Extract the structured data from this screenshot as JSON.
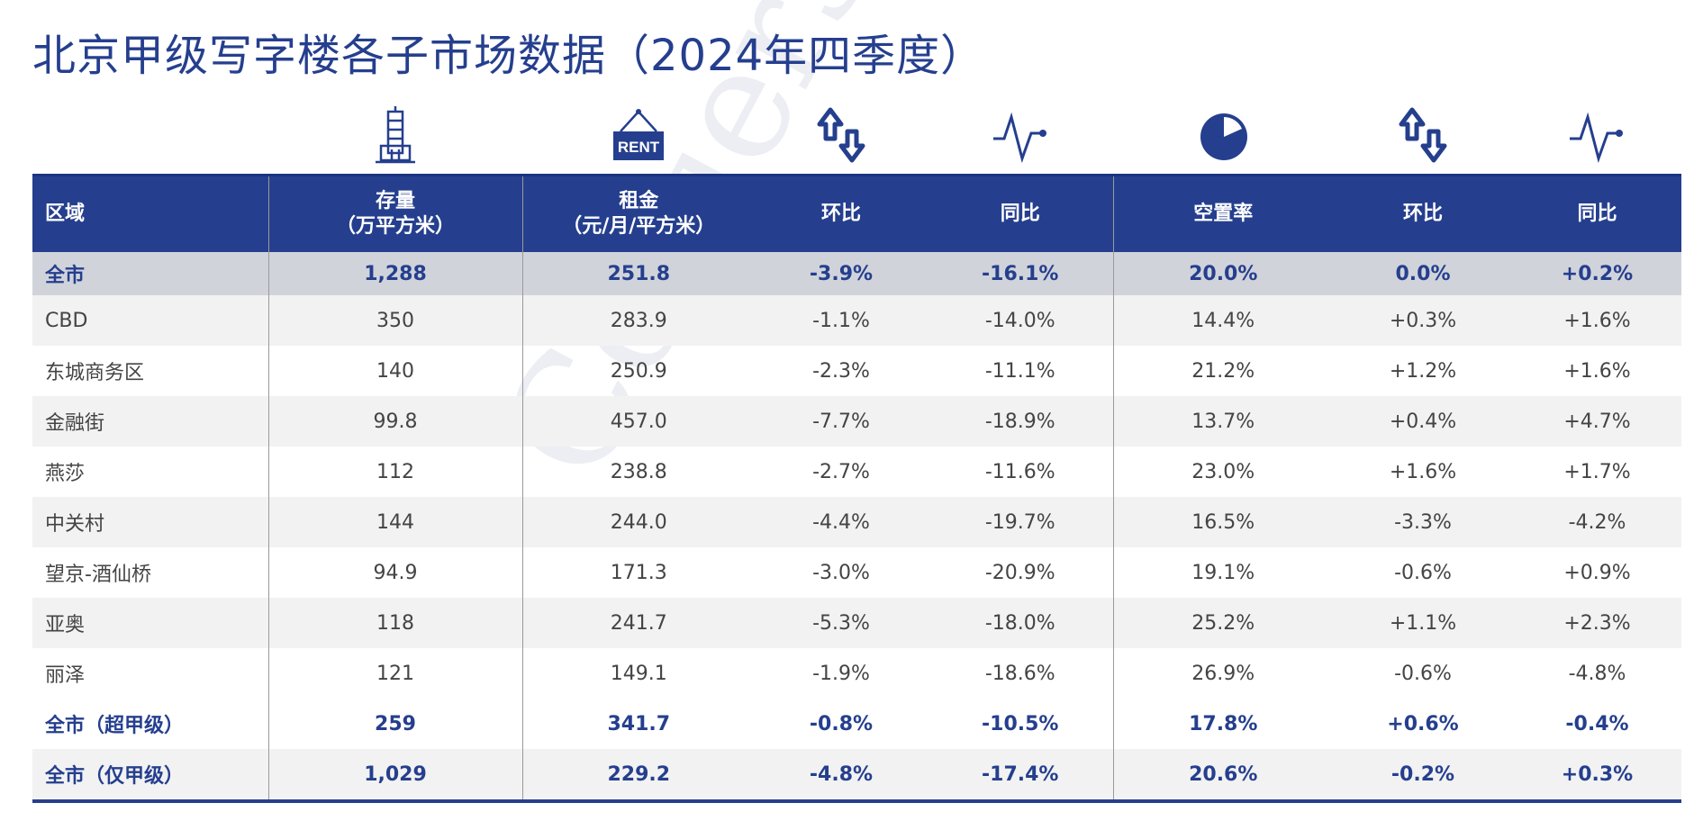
{
  "title": "北京甲级写字楼各子市场数据（2024年四季度）",
  "watermark": "Colliers",
  "colors": {
    "brand": "#253f8e",
    "total_row": "#d1d3db",
    "stripe": "#f2f2f2"
  },
  "icons": [
    "building-icon",
    "rent-sign-icon",
    "up-down-arrows-icon",
    "pulse-line-icon",
    "pie-icon",
    "up-down-arrows-icon",
    "pulse-line-icon"
  ],
  "rent_sign_text": "RENT",
  "headers": {
    "region": "区域",
    "stock": "存量",
    "stock_unit": "（万平方米）",
    "rent": "租金",
    "rent_unit": "（元/月/平方米）",
    "rent_qoq": "环比",
    "rent_yoy": "同比",
    "vacancy": "空置率",
    "vac_qoq": "环比",
    "vac_yoy": "同比"
  },
  "rows": [
    {
      "region": "全市",
      "stock": "1,288",
      "rent": "251.8",
      "rent_qoq": "-3.9%",
      "rent_yoy": "-16.1%",
      "vacancy": "20.0%",
      "vac_qoq": "0.0%",
      "vac_yoy": "+0.2%"
    },
    {
      "region": "CBD",
      "stock": "350",
      "rent": "283.9",
      "rent_qoq": "-1.1%",
      "rent_yoy": "-14.0%",
      "vacancy": "14.4%",
      "vac_qoq": "+0.3%",
      "vac_yoy": "+1.6%"
    },
    {
      "region": "东城商务区",
      "stock": "140",
      "rent": "250.9",
      "rent_qoq": "-2.3%",
      "rent_yoy": "-11.1%",
      "vacancy": "21.2%",
      "vac_qoq": "+1.2%",
      "vac_yoy": "+1.6%"
    },
    {
      "region": "金融街",
      "stock": "99.8",
      "rent": "457.0",
      "rent_qoq": "-7.7%",
      "rent_yoy": "-18.9%",
      "vacancy": "13.7%",
      "vac_qoq": "+0.4%",
      "vac_yoy": "+4.7%"
    },
    {
      "region": "燕莎",
      "stock": "112",
      "rent": "238.8",
      "rent_qoq": "-2.7%",
      "rent_yoy": "-11.6%",
      "vacancy": "23.0%",
      "vac_qoq": "+1.6%",
      "vac_yoy": "+1.7%"
    },
    {
      "region": "中关村",
      "stock": "144",
      "rent": "244.0",
      "rent_qoq": "-4.4%",
      "rent_yoy": "-19.7%",
      "vacancy": "16.5%",
      "vac_qoq": "-3.3%",
      "vac_yoy": "-4.2%"
    },
    {
      "region": "望京-酒仙桥",
      "stock": "94.9",
      "rent": "171.3",
      "rent_qoq": "-3.0%",
      "rent_yoy": "-20.9%",
      "vacancy": "19.1%",
      "vac_qoq": "-0.6%",
      "vac_yoy": "+0.9%"
    },
    {
      "region": "亚奥",
      "stock": "118",
      "rent": "241.7",
      "rent_qoq": "-5.3%",
      "rent_yoy": "-18.0%",
      "vacancy": "25.2%",
      "vac_qoq": "+1.1%",
      "vac_yoy": "+2.3%"
    },
    {
      "region": "丽泽",
      "stock": "121",
      "rent": "149.1",
      "rent_qoq": "-1.9%",
      "rent_yoy": "-18.6%",
      "vacancy": "26.9%",
      "vac_qoq": "-0.6%",
      "vac_yoy": "-4.8%"
    },
    {
      "region": "全市（超甲级）",
      "stock": "259",
      "rent": "341.7",
      "rent_qoq": "-0.8%",
      "rent_yoy": "-10.5%",
      "vacancy": "17.8%",
      "vac_qoq": "+0.6%",
      "vac_yoy": "-0.4%"
    },
    {
      "region": "全市（仅甲级）",
      "stock": "1,029",
      "rent": "229.2",
      "rent_qoq": "-4.8%",
      "rent_yoy": "-17.4%",
      "vacancy": "20.6%",
      "vac_qoq": "-0.2%",
      "vac_yoy": "+0.3%"
    }
  ]
}
